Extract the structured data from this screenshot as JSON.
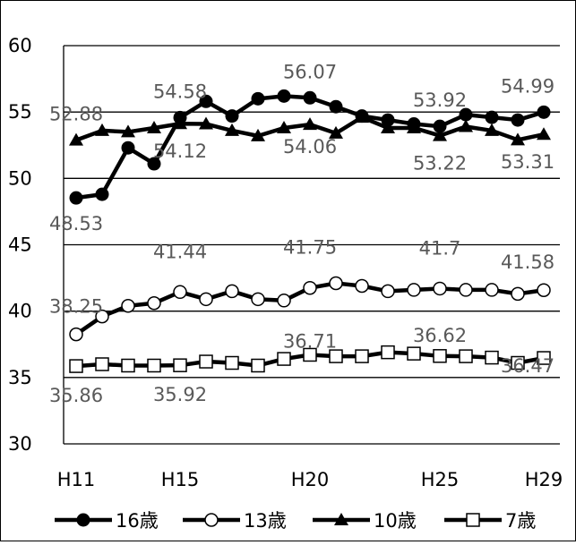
{
  "chart_data": {
    "type": "line",
    "title": "",
    "xlabel": "",
    "ylabel": "",
    "ylim": [
      30,
      60
    ],
    "yticks": [
      "30",
      "35",
      "40",
      "45",
      "50",
      "55",
      "60"
    ],
    "x": [
      "H11",
      "H12",
      "H13",
      "H14",
      "H15",
      "H16",
      "H17",
      "H18",
      "H19",
      "H20",
      "H21",
      "H22",
      "H23",
      "H24",
      "H25",
      "H26",
      "H27",
      "H28",
      "H29"
    ],
    "xtick_labels": [
      "H11",
      "H15",
      "H20",
      "H25",
      "H29"
    ],
    "grid": "horizontal major gridlines",
    "legend_position": "bottom",
    "series": [
      {
        "name": "16歳",
        "marker": "filled-circle",
        "color": "#000000",
        "values": [
          48.53,
          48.8,
          52.3,
          51.1,
          54.58,
          55.8,
          54.7,
          56.0,
          56.2,
          56.07,
          55.4,
          54.7,
          54.4,
          54.1,
          53.92,
          54.8,
          54.6,
          54.4,
          54.99
        ],
        "labels": [
          "48.53",
          "54.58",
          "56.07",
          "53.92",
          "54.99"
        ]
      },
      {
        "name": "13歳",
        "marker": "open-circle",
        "color": "#000000",
        "values": [
          38.25,
          39.6,
          40.4,
          40.6,
          41.44,
          40.9,
          41.5,
          40.9,
          40.8,
          41.75,
          42.1,
          41.9,
          41.5,
          41.6,
          41.7,
          41.6,
          41.6,
          41.3,
          41.58
        ],
        "labels": [
          "38.25",
          "41.44",
          "41.75",
          "41.7",
          "41.58"
        ]
      },
      {
        "name": "10歳",
        "marker": "filled-triangle",
        "color": "#000000",
        "values": [
          52.88,
          53.6,
          53.5,
          53.8,
          54.12,
          54.1,
          53.6,
          53.2,
          53.8,
          54.06,
          53.4,
          54.6,
          53.8,
          53.8,
          53.22,
          53.9,
          53.6,
          52.9,
          53.31
        ],
        "labels": [
          "52.88",
          "54.12",
          "54.06",
          "53.22",
          "53.31"
        ]
      },
      {
        "name": "7歳",
        "marker": "open-square",
        "color": "#000000",
        "values": [
          35.86,
          36.0,
          35.9,
          35.9,
          35.92,
          36.2,
          36.1,
          35.9,
          36.4,
          36.71,
          36.6,
          36.6,
          36.9,
          36.8,
          36.62,
          36.6,
          36.5,
          36.1,
          36.47
        ],
        "labels": [
          "35.86",
          "35.92",
          "36.71",
          "36.62",
          "36.47"
        ]
      }
    ]
  }
}
